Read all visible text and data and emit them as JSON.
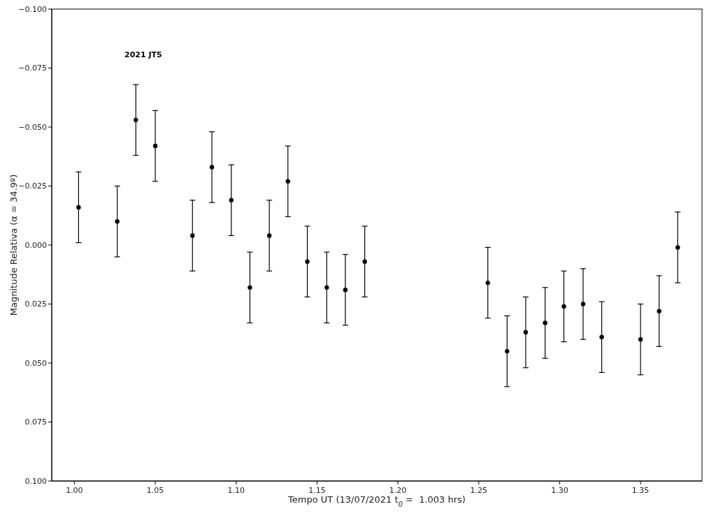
{
  "chart_data": {
    "type": "scatter",
    "xlabel": "Tempo UT (13/07/2021 t$_{0}$ =  1.003 hrs)",
    "ylabel": "Magnitude Relativa (α = 34.9º)",
    "annotations": [
      "2021 JT5"
    ],
    "x": [
      1.0026,
      1.0265,
      1.038,
      1.05,
      1.073,
      1.085,
      1.097,
      1.1085,
      1.1205,
      1.132,
      1.144,
      1.156,
      1.1675,
      1.1795,
      1.2556,
      1.2675,
      1.279,
      1.291,
      1.3026,
      1.3145,
      1.326,
      1.35,
      1.3615,
      1.373
    ],
    "series": [
      {
        "color": "#000000",
        "values": [
          -0.016,
          -0.01,
          -0.053,
          -0.042,
          -0.004,
          -0.033,
          -0.019,
          0.018,
          -0.004,
          -0.027,
          0.007,
          0.018,
          0.019,
          0.007,
          0.016,
          0.045,
          0.037,
          0.033,
          0.026,
          0.025,
          0.039,
          0.04,
          0.028,
          0.001
        ],
        "errors": [
          0.015,
          0.015,
          0.015,
          0.015,
          0.015,
          0.015,
          0.015,
          0.015,
          0.015,
          0.015,
          0.015,
          0.015,
          0.015,
          0.015,
          0.015,
          0.015,
          0.015,
          0.015,
          0.015,
          0.015,
          0.015,
          0.015,
          0.015,
          0.015
        ]
      }
    ],
    "xlim": [
      0.986,
      1.388
    ],
    "xticks": [
      {
        "value": 1,
        "label": "1.00"
      },
      {
        "value": 1.05,
        "label": "1.05"
      },
      {
        "value": 1.1,
        "label": "1.10"
      },
      {
        "value": 1.15,
        "label": "1.15"
      },
      {
        "value": 1.2,
        "label": "1.20"
      },
      {
        "value": 1.25,
        "label": "1.25"
      },
      {
        "value": 1.3,
        "label": "1.30"
      },
      {
        "value": 1.35,
        "label": "1.35"
      }
    ],
    "ylim": [
      0.1,
      -0.1
    ],
    "yticks": [
      {
        "value": -0.1,
        "label": "−0.100"
      },
      {
        "value": -0.075,
        "label": "−0.075"
      },
      {
        "value": -0.05,
        "label": "−0.050"
      },
      {
        "value": -0.025,
        "label": "−0.025"
      },
      {
        "value": 0,
        "label": "0.000"
      },
      {
        "value": 0.025,
        "label": "0.025"
      },
      {
        "value": 0.05,
        "label": "0.050"
      },
      {
        "value": 0.075,
        "label": "0.075"
      },
      {
        "value": 0.1,
        "label": "0.100"
      }
    ],
    "grid": false,
    "legend": false,
    "marker": "circle"
  }
}
